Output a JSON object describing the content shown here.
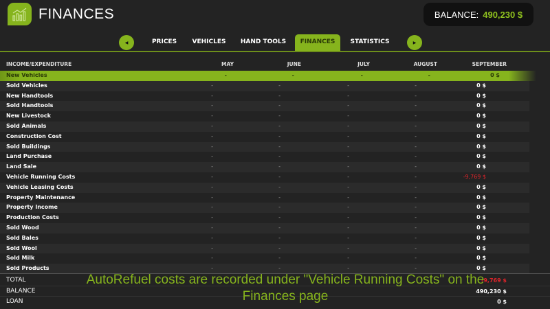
{
  "header": {
    "title": "FINANCES",
    "balance_label": "BALANCE:",
    "balance_value": "490,230 $",
    "logo_icon": "chart-icon"
  },
  "tabs": [
    {
      "label": "PRICES"
    },
    {
      "label": "VEHICLES"
    },
    {
      "label": "HAND TOOLS"
    },
    {
      "label": "FINANCES",
      "active": true
    },
    {
      "label": "STATISTICS"
    }
  ],
  "table": {
    "columns": [
      "INCOME/EXPENDITURE",
      "MAY",
      "JUNE",
      "JULY",
      "AUGUST",
      "SEPTEMBER"
    ],
    "rows": [
      [
        "New Vehicles",
        "-",
        "-",
        "-",
        "-",
        "0 $"
      ],
      [
        "Sold Vehicles",
        "-",
        "-",
        "-",
        "-",
        "0 $"
      ],
      [
        "New Handtools",
        "-",
        "-",
        "-",
        "-",
        "0 $"
      ],
      [
        "Sold Handtools",
        "-",
        "-",
        "-",
        "-",
        "0 $"
      ],
      [
        "New Livestock",
        "-",
        "-",
        "-",
        "-",
        "0 $"
      ],
      [
        "Sold Animals",
        "-",
        "-",
        "-",
        "-",
        "0 $"
      ],
      [
        "Construction Cost",
        "-",
        "-",
        "-",
        "-",
        "0 $"
      ],
      [
        "Sold Buildings",
        "-",
        "-",
        "-",
        "-",
        "0 $"
      ],
      [
        "Land Purchase",
        "-",
        "-",
        "-",
        "-",
        "0 $"
      ],
      [
        "Land Sale",
        "-",
        "-",
        "-",
        "-",
        "0 $"
      ],
      [
        "Vehicle Running Costs",
        "-",
        "-",
        "-",
        "-",
        "-9,769 $"
      ],
      [
        "Vehicle Leasing Costs",
        "-",
        "-",
        "-",
        "-",
        "0 $"
      ],
      [
        "Property Maintenance",
        "-",
        "-",
        "-",
        "-",
        "0 $"
      ],
      [
        "Property Income",
        "-",
        "-",
        "-",
        "-",
        "0 $"
      ],
      [
        "Production Costs",
        "-",
        "-",
        "-",
        "-",
        "0 $"
      ],
      [
        "Sold Wood",
        "-",
        "-",
        "-",
        "-",
        "0 $"
      ],
      [
        "Sold Bales",
        "-",
        "-",
        "-",
        "-",
        "0 $"
      ],
      [
        "Sold Wool",
        "-",
        "-",
        "-",
        "-",
        "0 $"
      ],
      [
        "Sold Milk",
        "-",
        "-",
        "-",
        "-",
        "0 $"
      ],
      [
        "Sold Products",
        "-",
        "-",
        "-",
        "-",
        "0 $"
      ]
    ],
    "footer": [
      {
        "label": "TOTAL",
        "value": "-9,769 $",
        "negative": true
      },
      {
        "label": "BALANCE",
        "value": "490,230 $"
      },
      {
        "label": "LOAN",
        "value": "0 $"
      }
    ]
  },
  "colors": {
    "accent": "#86b41d",
    "negative": "#e0242a"
  },
  "caption": "AutoRefuel costs are recorded under \"Vehicle Running Costs\" on the Finances page"
}
